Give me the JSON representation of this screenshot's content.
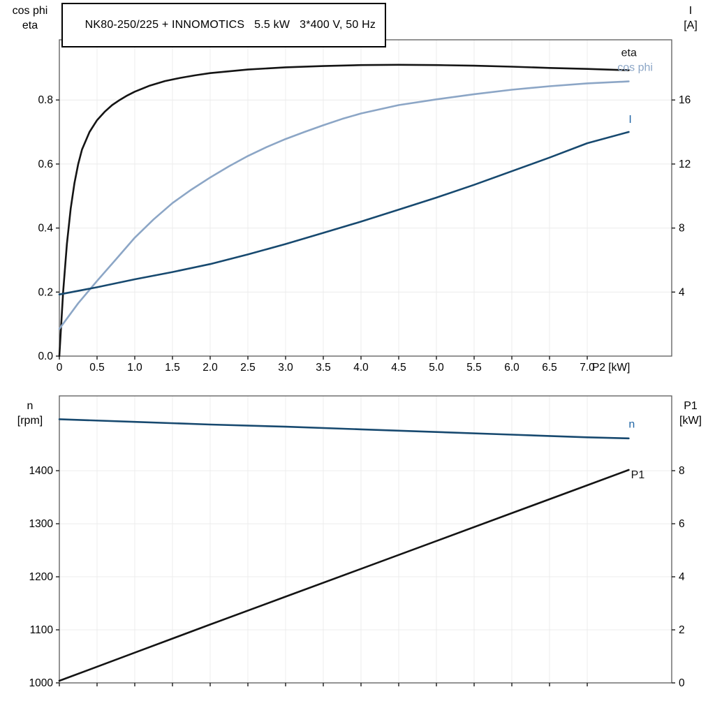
{
  "title": "NK80-250/225 + INNOMOTICS   5.5 kW   3*400 V, 50 Hz",
  "colors": {
    "eta": "#141414",
    "cos_phi": "#8ca6c6",
    "current": "#17496f",
    "label_blue": "#2266a5",
    "grid": "#ececec",
    "frame": "#5a5a5a",
    "tick": "#1a1a1a"
  },
  "labels": {
    "upper_left": [
      "cos phi",
      "eta"
    ],
    "upper_right": [
      "I",
      "[A]"
    ],
    "lower_left": [
      "n",
      "[rpm]"
    ],
    "lower_right": [
      "P1",
      "[kW]"
    ]
  },
  "chart_data": [
    {
      "type": "line",
      "title": "NK80-250/225 + INNOMOTICS   5.5 kW   3*400 V, 50 Hz",
      "xlabel": "P2 [kW]",
      "x_range": [
        0,
        8.12
      ],
      "show_x_labels": true,
      "x_ticks": {
        "values": [
          0,
          0.5,
          1.0,
          1.5,
          2.0,
          2.5,
          3.0,
          3.5,
          4.0,
          4.5,
          5.0,
          5.5,
          6.0,
          6.5,
          7.0
        ],
        "labels": [
          "0",
          "0.5",
          "1.0",
          "1.5",
          "2.0",
          "2.5",
          "3.0",
          "3.5",
          "4.0",
          "4.5",
          "5.0",
          "5.5",
          "6.0",
          "6.5",
          "7.0"
        ]
      },
      "left_axis": {
        "label": "cos phi / eta",
        "range": [
          0,
          0.988
        ],
        "ticks": {
          "values": [
            0.0,
            0.2,
            0.4,
            0.6,
            0.8
          ],
          "labels": [
            "0.0",
            "0.2",
            "0.4",
            "0.6",
            "0.8"
          ]
        }
      },
      "right_axis": {
        "label": "I [A]",
        "range": [
          0,
          19.76
        ],
        "ticks": {
          "values": [
            4,
            8,
            12,
            16
          ],
          "labels": [
            "4",
            "8",
            "12",
            "16"
          ]
        }
      },
      "series": [
        {
          "name": "eta",
          "label": "eta",
          "axis": "left",
          "color": "eta",
          "label_color": "eta",
          "label_xy": [
            7.45,
            0.937
          ],
          "points": [
            [
              0,
              0
            ],
            [
              0.05,
              0.2
            ],
            [
              0.1,
              0.35
            ],
            [
              0.15,
              0.46
            ],
            [
              0.2,
              0.54
            ],
            [
              0.25,
              0.6
            ],
            [
              0.3,
              0.645
            ],
            [
              0.4,
              0.7
            ],
            [
              0.5,
              0.737
            ],
            [
              0.6,
              0.763
            ],
            [
              0.7,
              0.784
            ],
            [
              0.8,
              0.8
            ],
            [
              0.9,
              0.814
            ],
            [
              1,
              0.826
            ],
            [
              1.2,
              0.845
            ],
            [
              1.4,
              0.859
            ],
            [
              1.6,
              0.869
            ],
            [
              1.8,
              0.877
            ],
            [
              2,
              0.884
            ],
            [
              2.5,
              0.895
            ],
            [
              3,
              0.902
            ],
            [
              3.5,
              0.906
            ],
            [
              4,
              0.909
            ],
            [
              4.5,
              0.91
            ],
            [
              5,
              0.909
            ],
            [
              5.5,
              0.907
            ],
            [
              6,
              0.904
            ],
            [
              6.5,
              0.9
            ],
            [
              7,
              0.897
            ],
            [
              7.55,
              0.893
            ]
          ]
        },
        {
          "name": "cos phi",
          "label": "cos phi",
          "axis": "left",
          "color": "cos_phi",
          "label_color": "cos_phi",
          "label_xy": [
            7.4,
            0.891
          ],
          "points": [
            [
              0,
              0.085
            ],
            [
              0.25,
              0.165
            ],
            [
              0.5,
              0.235
            ],
            [
              0.75,
              0.302
            ],
            [
              1,
              0.37
            ],
            [
              1.25,
              0.427
            ],
            [
              1.5,
              0.478
            ],
            [
              1.75,
              0.52
            ],
            [
              2,
              0.558
            ],
            [
              2.25,
              0.593
            ],
            [
              2.5,
              0.625
            ],
            [
              2.75,
              0.653
            ],
            [
              3,
              0.678
            ],
            [
              3.25,
              0.7
            ],
            [
              3.5,
              0.721
            ],
            [
              3.75,
              0.741
            ],
            [
              4,
              0.758
            ],
            [
              4.5,
              0.784
            ],
            [
              5,
              0.802
            ],
            [
              5.5,
              0.818
            ],
            [
              6,
              0.832
            ],
            [
              6.5,
              0.843
            ],
            [
              7,
              0.852
            ],
            [
              7.55,
              0.858
            ]
          ]
        },
        {
          "name": "I",
          "label": "I",
          "axis": "right",
          "color": "current",
          "label_color": "label_blue",
          "label_xy": [
            7.55,
            14.56
          ],
          "points": [
            [
              0,
              3.85
            ],
            [
              0.5,
              4.3
            ],
            [
              1,
              4.8
            ],
            [
              1.5,
              5.25
            ],
            [
              2,
              5.75
            ],
            [
              2.5,
              6.35
            ],
            [
              3,
              7
            ],
            [
              3.5,
              7.7
            ],
            [
              4,
              8.4
            ],
            [
              4.5,
              9.15
            ],
            [
              5,
              9.9
            ],
            [
              5.5,
              10.7
            ],
            [
              6,
              11.55
            ],
            [
              6.5,
              12.4
            ],
            [
              7,
              13.3
            ],
            [
              7.55,
              14
            ]
          ]
        }
      ]
    },
    {
      "type": "line",
      "title": "",
      "xlabel": "",
      "x_range": [
        0,
        8.12
      ],
      "show_x_labels": false,
      "x_ticks": {
        "values": [
          0,
          0.5,
          1.0,
          1.5,
          2.0,
          2.5,
          3.0,
          3.5,
          4.0,
          4.5,
          5.0,
          5.5,
          6.0,
          6.5,
          7.0
        ],
        "labels": []
      },
      "left_axis": {
        "label": "n [rpm]",
        "range": [
          1000,
          1541
        ],
        "ticks": {
          "values": [
            1000,
            1100,
            1200,
            1300,
            1400
          ],
          "labels": [
            "1000",
            "1100",
            "1200",
            "1300",
            "1400"
          ]
        }
      },
      "right_axis": {
        "label": "P1 [kW]",
        "range": [
          0,
          10.82
        ],
        "ticks": {
          "values": [
            0,
            2,
            4,
            6,
            8
          ],
          "labels": [
            "0",
            "2",
            "4",
            "6",
            "8"
          ]
        }
      },
      "series": [
        {
          "name": "n",
          "label": "n",
          "axis": "left",
          "color": "current",
          "label_color": "label_blue",
          "label_xy": [
            7.55,
            1481
          ],
          "points": [
            [
              0,
              1497
            ],
            [
              1,
              1492
            ],
            [
              2,
              1487
            ],
            [
              3,
              1483
            ],
            [
              4,
              1478
            ],
            [
              5,
              1473
            ],
            [
              6,
              1468
            ],
            [
              7,
              1463
            ],
            [
              7.55,
              1461
            ]
          ]
        },
        {
          "name": "P1",
          "label": "P1",
          "axis": "right",
          "color": "eta",
          "label_color": "eta",
          "label_xy": [
            7.58,
            7.72
          ],
          "points": [
            [
              0,
              0.08
            ],
            [
              1,
              1.14
            ],
            [
              2,
              2.2
            ],
            [
              3,
              3.25
            ],
            [
              4,
              4.3
            ],
            [
              5,
              5.35
            ],
            [
              6,
              6.4
            ],
            [
              7,
              7.45
            ],
            [
              7.55,
              8.03
            ]
          ]
        }
      ]
    }
  ]
}
